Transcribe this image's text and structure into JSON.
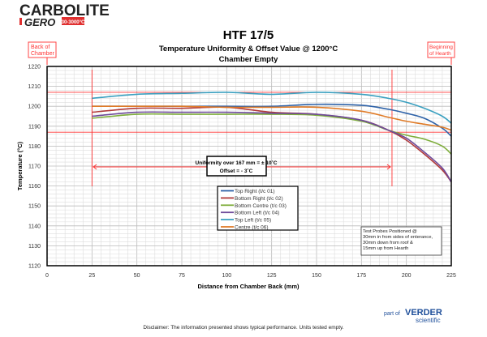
{
  "logo": {
    "brand_top": "CARBOLITE",
    "brand_bottom": "GERO",
    "range": "30-3000°C"
  },
  "footer": {
    "disclaimer": "Disclaimer: The information presented shows typical performance.  Units tested empty.",
    "part_of": "part of",
    "verder": "VERDER",
    "scientific": "scientific"
  },
  "chart_data": {
    "type": "line",
    "title": "HTF 17/5",
    "subtitle": "Temperature Uniformity & Offset Value @ 1200°C",
    "subtitle2": "Chamber Empty",
    "xlabel": "Distance from Chamber Back  (mm)",
    "ylabel": "Temperature (°C)",
    "xlim": [
      0,
      225
    ],
    "ylim": [
      1120,
      1220
    ],
    "xticks": [
      0,
      25,
      50,
      75,
      100,
      125,
      150,
      175,
      200,
      225
    ],
    "yticks": [
      1120,
      1130,
      1140,
      1150,
      1160,
      1170,
      1180,
      1190,
      1200,
      1210,
      1220
    ],
    "grid": true,
    "legend_position": "center",
    "x": [
      25,
      50,
      75,
      100,
      125,
      150,
      175,
      190,
      200,
      210,
      220,
      225
    ],
    "series": [
      {
        "name": "Top Right (t/c 01)",
        "color": "#2e62a8",
        "values": [
          1200,
          1200,
          1200,
          1200,
          1200,
          1201,
          1200.5,
          1198.5,
          1196.5,
          1194,
          1189,
          1185
        ]
      },
      {
        "name": "Bottom Right (t/c 02)",
        "color": "#b03a3a",
        "values": [
          1197,
          1199,
          1199,
          1199.5,
          1197,
          1196,
          1193,
          1188,
          1183,
          1176,
          1168,
          1162
        ]
      },
      {
        "name": "Bottom Centre (t/c 03)",
        "color": "#7fae3c",
        "values": [
          1194,
          1196,
          1196,
          1196,
          1196,
          1195.5,
          1192.5,
          1188,
          1185.5,
          1183.5,
          1180,
          1176
        ]
      },
      {
        "name": "Bottom Left (t/c 04)",
        "color": "#6e4a9a",
        "values": [
          1195,
          1197,
          1197,
          1197,
          1196.5,
          1196,
          1193,
          1188,
          1184,
          1177,
          1169,
          1162
        ]
      },
      {
        "name": "Top Left (t/c 05)",
        "color": "#3aa0c0",
        "values": [
          1204,
          1206,
          1206.5,
          1207,
          1206,
          1207,
          1206,
          1204,
          1202,
          1199,
          1195,
          1191.5
        ]
      },
      {
        "name": "Centre (t/c 06)",
        "color": "#e07b27",
        "values": [
          1200,
          1200,
          1200,
          1199.5,
          1199.5,
          1199.5,
          1197.5,
          1194.5,
          1192.5,
          1191,
          1189.5,
          1188
        ]
      }
    ],
    "reference_lines": {
      "horizontal": [
        1207,
        1187
      ],
      "vertical": [
        25,
        192
      ],
      "color": "#ff3333"
    },
    "annotations": {
      "back": "Back of Chamber",
      "hearth": "Beginning of Hearth",
      "uniformity": "Uniformity over 167 mm = ± 10˚C",
      "offset": "Offset = - 3˚C",
      "probes": [
        "Test Probes Positioned @",
        "30mm in from sides of enterance,",
        "30mm down from roof &",
        "15mm up from Hearth"
      ]
    }
  }
}
